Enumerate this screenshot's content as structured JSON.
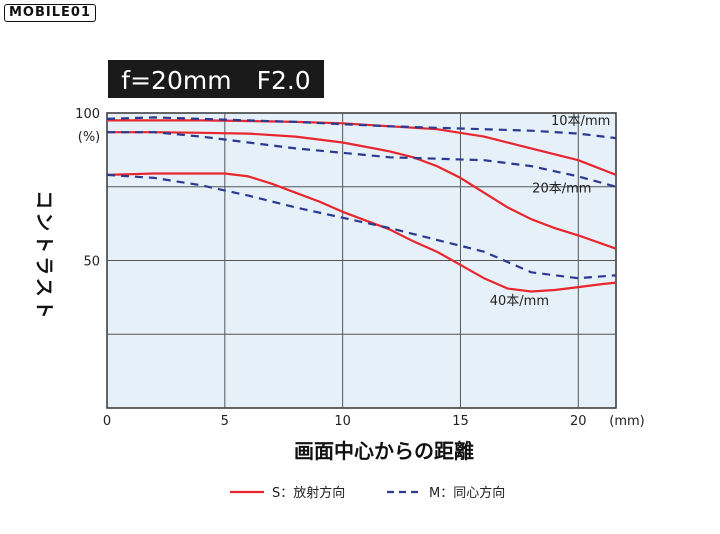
{
  "watermark": {
    "text": "MOBILE01"
  },
  "colors": {
    "sagittal": "#e8262d",
    "meridional": "#2b3a8f",
    "plot_bg": "#e5f0f9",
    "title_bg": "#1a1a1a",
    "grid": "#555555"
  },
  "chart_data": {
    "type": "line",
    "title": "f=20mm　F2.0",
    "xlabel": "画面中心からの距離",
    "x_unit": "(mm)",
    "ylabel": "コントラスト",
    "y_unit": "(%)",
    "xlim": [
      0,
      21.6
    ],
    "ylim": [
      0,
      100
    ],
    "x_ticks": [
      0,
      5,
      10,
      15,
      20
    ],
    "x_tick_labels": [
      "0",
      "5",
      "10",
      "15",
      "20"
    ],
    "y_tick_labels": [
      {
        "value": 50,
        "label": "50"
      },
      {
        "value": 100,
        "label": "100"
      }
    ],
    "x_gridlines": [
      5,
      10,
      15,
      20
    ],
    "y_gridlines": [
      25,
      50,
      75
    ],
    "grid": true,
    "annotations": [
      {
        "text": "10本/mm",
        "x": 20.1,
        "y": 96
      },
      {
        "text": "20本/mm",
        "x": 19.3,
        "y": 73
      },
      {
        "text": "40本/mm",
        "x": 17.5,
        "y": 35
      }
    ],
    "series": [
      {
        "name": "S：放射方向",
        "style": "solid",
        "frequency": "10本/mm",
        "x": [
          0,
          2,
          4,
          6,
          8,
          10,
          12,
          14,
          16,
          18,
          20,
          21.6
        ],
        "y": [
          97.5,
          97.5,
          97.5,
          97.3,
          97,
          96.5,
          95.5,
          94.5,
          92,
          88,
          84,
          79
        ]
      },
      {
        "name": "S：放射方向",
        "style": "solid",
        "frequency": "20本/mm",
        "x": [
          0,
          2,
          4,
          6,
          8,
          10,
          12,
          13,
          14,
          15,
          16,
          17,
          18,
          19,
          20,
          21.6
        ],
        "y": [
          93.5,
          93.5,
          93.3,
          93,
          92,
          90,
          87,
          85,
          82,
          78,
          73,
          68,
          64,
          61,
          58.5,
          54
        ]
      },
      {
        "name": "S：放射方向",
        "style": "solid",
        "frequency": "40本/mm",
        "x": [
          0,
          2,
          4,
          5,
          6,
          7,
          8,
          9,
          10,
          11,
          12,
          13,
          14,
          15,
          16,
          17,
          18,
          19,
          20,
          21,
          21.6
        ],
        "y": [
          79,
          79.5,
          79.5,
          79.5,
          78.5,
          76,
          73,
          70,
          66.5,
          63.5,
          60.5,
          56.5,
          53,
          48.5,
          44,
          40.5,
          39.5,
          40,
          41,
          42,
          42.5
        ]
      },
      {
        "name": "M：同心方向",
        "style": "dashed",
        "frequency": "10本/mm",
        "x": [
          0,
          2,
          4,
          6,
          8,
          10,
          12,
          14,
          16,
          18,
          20,
          21.6
        ],
        "y": [
          98,
          98.5,
          98,
          97.5,
          97,
          96.2,
          95.5,
          95,
          94.5,
          94,
          93,
          91.5
        ]
      },
      {
        "name": "M：同心方向",
        "style": "dashed",
        "frequency": "20本/mm",
        "x": [
          0,
          2,
          4,
          6,
          8,
          10,
          12,
          14,
          16,
          18,
          20,
          21.6
        ],
        "y": [
          93.5,
          93.5,
          92,
          90,
          88,
          86.5,
          85,
          84.5,
          84,
          82,
          78.5,
          75
        ]
      },
      {
        "name": "M：同心方向",
        "style": "dashed",
        "frequency": "40本/mm",
        "x": [
          0,
          2,
          4,
          6,
          8,
          10,
          12,
          14,
          16,
          18,
          20,
          21.6
        ],
        "y": [
          79,
          78,
          75.5,
          72,
          68,
          64.5,
          61,
          57,
          53,
          46,
          44,
          45
        ]
      }
    ],
    "legend": {
      "placement": "bottom-center",
      "entries": [
        {
          "label": "S：放射方向",
          "style": "solid"
        },
        {
          "label": "M：同心方向",
          "style": "dashed"
        }
      ]
    }
  }
}
